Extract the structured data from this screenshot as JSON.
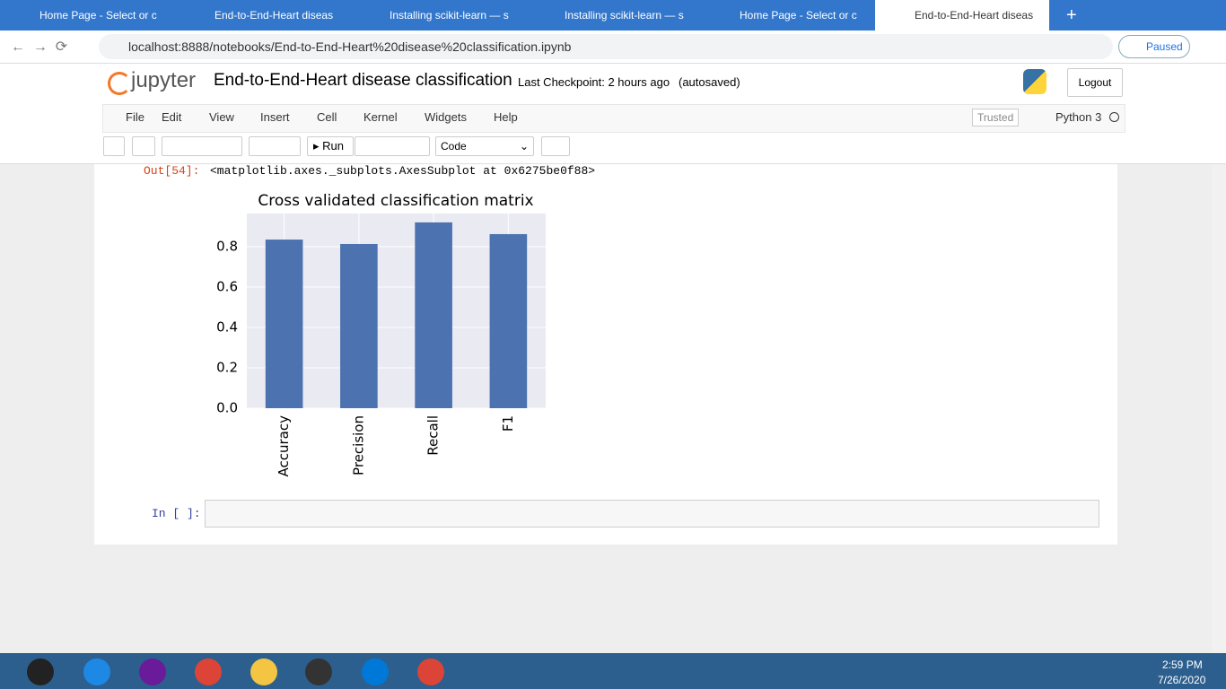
{
  "browser": {
    "tabs": [
      "Home Page - Select or c",
      "End-to-End-Heart diseas",
      "Installing scikit-learn — s",
      "Installing scikit-learn — s",
      "Home Page - Select or c",
      "End-to-End-Heart diseas"
    ],
    "url": "localhost:8888/notebooks/End-to-End-Heart%20disease%20classification.ipynb",
    "profile": "Paused"
  },
  "header": {
    "logo": "jupyter",
    "title": "End-to-End-Heart disease classification",
    "checkpoint": "Last Checkpoint: 2 hours ago",
    "autosaved": "(autosaved)",
    "logout": "Logout"
  },
  "menu": {
    "items": [
      "File",
      "Edit",
      "View",
      "Insert",
      "Cell",
      "Kernel",
      "Widgets",
      "Help"
    ],
    "trusted": "Trusted",
    "kernel": "Python 3"
  },
  "toolbar": {
    "run": "Run",
    "cell_type": "Code"
  },
  "cells": {
    "out_prompt": "Out[54]:",
    "out_text": "<matplotlib.axes._subplots.AxesSubplot at 0x6275be0f88>",
    "in_prompt": "In [ ]:"
  },
  "chart_data": {
    "type": "bar",
    "title": "Cross validated classification matrix",
    "categories": [
      "Accuracy",
      "Precision",
      "Recall",
      "F1"
    ],
    "values": [
      0.835,
      0.813,
      0.92,
      0.862
    ],
    "color": "#4c72b0",
    "ylim": [
      0,
      0.964
    ],
    "yticks": [
      {
        "value": 0,
        "label": "0.0"
      },
      0.2,
      0.4,
      0.6,
      0.8
    ],
    "grid": true
  },
  "taskbar": {
    "time": "2:59 PM",
    "date": "7/26/2020"
  }
}
